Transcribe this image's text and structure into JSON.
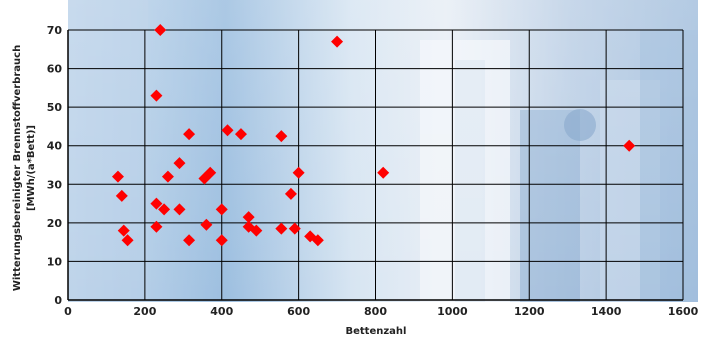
{
  "chart_data": {
    "type": "scatter",
    "xlabel": "Bettenzahl",
    "ylabel_line1": "Witterungsbereinigter Brennstoffverbrauch",
    "ylabel_line2": "[MWh/(a*Bett)]",
    "xlim": [
      0,
      1600
    ],
    "ylim": [
      0,
      70
    ],
    "xticks": [
      0,
      200,
      400,
      600,
      800,
      1000,
      1200,
      1400,
      1600
    ],
    "yticks": [
      0,
      10,
      20,
      30,
      40,
      50,
      60,
      70
    ],
    "grid": true,
    "marker_color": "#ff0000",
    "grid_color": "#000000",
    "points": [
      {
        "x": 240,
        "y": 70
      },
      {
        "x": 700,
        "y": 67
      },
      {
        "x": 230,
        "y": 53
      },
      {
        "x": 315,
        "y": 43
      },
      {
        "x": 415,
        "y": 44
      },
      {
        "x": 450,
        "y": 43
      },
      {
        "x": 555,
        "y": 42.5
      },
      {
        "x": 1460,
        "y": 40
      },
      {
        "x": 130,
        "y": 32
      },
      {
        "x": 140,
        "y": 27
      },
      {
        "x": 260,
        "y": 32
      },
      {
        "x": 290,
        "y": 35.5
      },
      {
        "x": 355,
        "y": 31.5
      },
      {
        "x": 370,
        "y": 33
      },
      {
        "x": 600,
        "y": 33
      },
      {
        "x": 820,
        "y": 33
      },
      {
        "x": 580,
        "y": 27.5
      },
      {
        "x": 230,
        "y": 25
      },
      {
        "x": 250,
        "y": 23.5
      },
      {
        "x": 290,
        "y": 23.5
      },
      {
        "x": 400,
        "y": 23.5
      },
      {
        "x": 470,
        "y": 21.5
      },
      {
        "x": 230,
        "y": 19
      },
      {
        "x": 360,
        "y": 19.5
      },
      {
        "x": 470,
        "y": 19
      },
      {
        "x": 490,
        "y": 18
      },
      {
        "x": 555,
        "y": 18.5
      },
      {
        "x": 590,
        "y": 18.5
      },
      {
        "x": 145,
        "y": 18
      },
      {
        "x": 155,
        "y": 15.5
      },
      {
        "x": 315,
        "y": 15.5
      },
      {
        "x": 400,
        "y": 15.5
      },
      {
        "x": 630,
        "y": 16.5
      },
      {
        "x": 650,
        "y": 15.5
      }
    ]
  }
}
